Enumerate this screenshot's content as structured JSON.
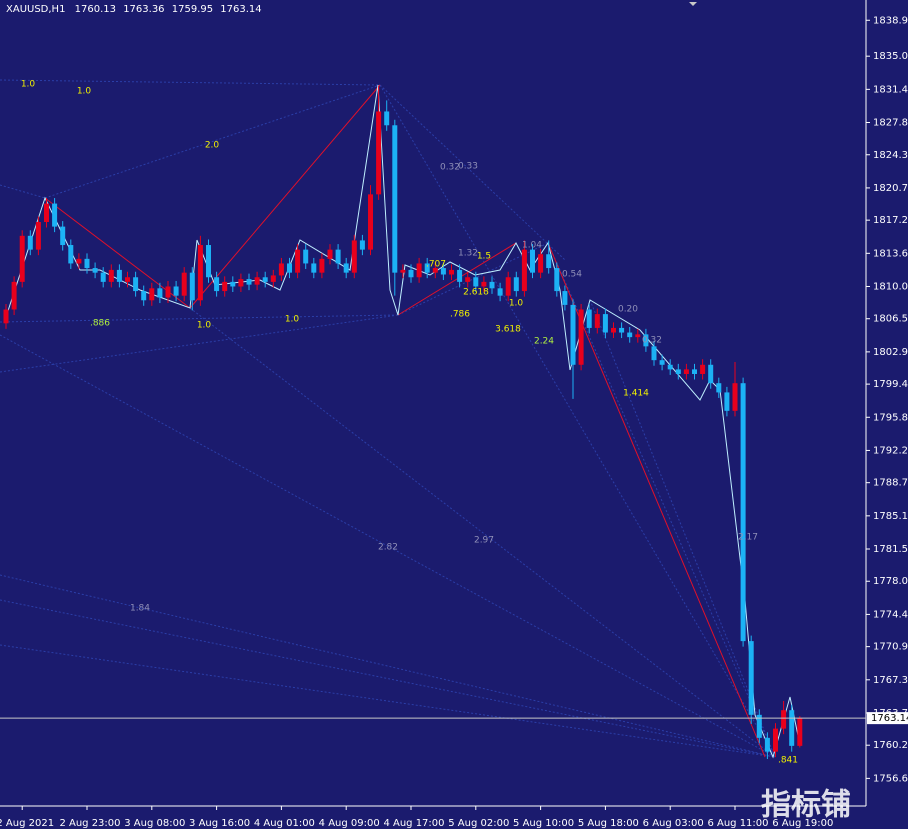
{
  "chart_data": {
    "type": "candlestick",
    "symbol": "XAUUSD,H1",
    "watermark": "指标铺",
    "up_color": "#e8001c",
    "down_color": "#1cb2f5",
    "background": "#1b1b6e",
    "categories": [
      null,
      null,
      "2 Aug 2021",
      null,
      null,
      null,
      null,
      null,
      null,
      null,
      "2 Aug 23:00",
      null,
      null,
      null,
      null,
      null,
      null,
      null,
      "3 Aug 08:00",
      null,
      null,
      null,
      null,
      null,
      null,
      null,
      "3 Aug 16:00",
      null,
      null,
      null,
      null,
      null,
      null,
      null,
      "4 Aug 01:00",
      null,
      null,
      null,
      null,
      null,
      null,
      null,
      "4 Aug 09:00",
      null,
      null,
      null,
      null,
      null,
      null,
      null,
      "4 Aug 17:00",
      null,
      null,
      null,
      null,
      null,
      null,
      null,
      "5 Aug 02:00",
      null,
      null,
      null,
      null,
      null,
      null,
      null,
      "5 Aug 10:00",
      null,
      null,
      null,
      null,
      null,
      null,
      null,
      "5 Aug 18:00",
      null,
      null,
      null,
      null,
      null,
      null,
      null,
      "6 Aug 03:00",
      null,
      null,
      null,
      null,
      null,
      null,
      null,
      "6 Aug 11:00",
      null,
      null,
      null,
      null,
      null,
      null,
      null,
      "6 Aug 19:00"
    ],
    "open": [
      1806.0,
      1807.5,
      1810.5,
      1815.5,
      1814.0,
      1817.0,
      1819.0,
      1816.5,
      1814.5,
      1812.5,
      1813.0,
      1812.0,
      1811.5,
      1810.5,
      1811.8,
      1810.5,
      1811.0,
      1809.5,
      1808.5,
      1809.8,
      1808.8,
      1810.0,
      1809.0,
      1811.5,
      1808.5,
      1814.5,
      1811.0,
      1809.5,
      1810.5,
      1810.0,
      1810.8,
      1810.2,
      1811.0,
      1810.5,
      1811.2,
      1812.5,
      1811.5,
      1814.0,
      1812.5,
      1811.5,
      1813.0,
      1814.0,
      1812.5,
      1811.5,
      1815.0,
      1814.0,
      1820.0,
      1829.0,
      1827.5,
      1811.5,
      1811.8,
      1811.0,
      1812.5,
      1811.5,
      1812.0,
      1811.3,
      1811.8,
      1810.5,
      1811.0,
      1810.0,
      1810.5,
      1809.8,
      1809.0,
      1811.0,
      1809.5,
      1814.0,
      1811.5,
      1813.5,
      1812.0,
      1809.5,
      1808.0,
      1801.5,
      1807.5,
      1805.5,
      1807.0,
      1805.0,
      1805.5,
      1805.0,
      1804.5,
      1804.8,
      1803.5,
      1802.0,
      1801.5,
      1801.0,
      1800.5,
      1801.0,
      1800.5,
      1801.5,
      1799.5,
      1798.5,
      1796.5,
      1799.5,
      1771.5,
      1763.5,
      1761.0,
      1759.5,
      1762.0,
      1764.0,
      1760.13
    ],
    "high": [
      1808.1,
      1811.1,
      1816.1,
      1816.1,
      1817.6,
      1819.6,
      1819.6,
      1817.1,
      1815.1,
      1813.6,
      1813.6,
      1812.6,
      1812.1,
      1812.4,
      1812.4,
      1811.6,
      1811.6,
      1810.1,
      1810.4,
      1810.4,
      1810.6,
      1810.6,
      1812.1,
      1812.1,
      1815.5,
      1815.1,
      1811.6,
      1811.1,
      1811.1,
      1811.4,
      1811.4,
      1811.6,
      1811.6,
      1811.8,
      1813.1,
      1813.1,
      1814.6,
      1814.6,
      1813.1,
      1813.6,
      1814.6,
      1814.6,
      1813.1,
      1815.6,
      1815.6,
      1821.0,
      1831.8,
      1830.2,
      1828.1,
      1812.4,
      1812.4,
      1813.1,
      1813.1,
      1812.6,
      1812.6,
      1812.4,
      1812.4,
      1811.6,
      1811.6,
      1811.1,
      1811.1,
      1810.4,
      1811.6,
      1811.6,
      1815.0,
      1814.6,
      1814.1,
      1815.0,
      1812.6,
      1810.1,
      1808.6,
      1808.1,
      1808.1,
      1807.6,
      1807.6,
      1806.1,
      1806.1,
      1805.6,
      1805.4,
      1805.4,
      1804.1,
      1802.6,
      1802.1,
      1801.6,
      1801.6,
      1801.6,
      1802.1,
      1802.1,
      1800.1,
      1799.1,
      1801.8,
      1800.1,
      1772.1,
      1764.1,
      1761.6,
      1762.6,
      1765.0,
      1764.6,
      1763.36
    ],
    "low": [
      1805.4,
      1806.9,
      1809.9,
      1813.4,
      1813.4,
      1816.4,
      1815.9,
      1813.9,
      1811.9,
      1811.9,
      1811.4,
      1810.9,
      1809.9,
      1809.9,
      1809.9,
      1809.9,
      1808.9,
      1807.9,
      1807.9,
      1808.2,
      1808.2,
      1808.4,
      1808.4,
      1807.4,
      1807.9,
      1810.4,
      1808.9,
      1808.9,
      1809.4,
      1809.4,
      1809.6,
      1809.6,
      1809.9,
      1809.9,
      1810.6,
      1810.9,
      1810.9,
      1811.9,
      1810.9,
      1810.9,
      1812.4,
      1811.9,
      1810.9,
      1810.9,
      1813.4,
      1813.4,
      1819.4,
      1826.9,
      1809.0,
      1810.9,
      1810.4,
      1810.4,
      1810.9,
      1810.9,
      1810.7,
      1810.7,
      1809.9,
      1809.9,
      1809.4,
      1809.4,
      1809.2,
      1808.4,
      1808.4,
      1808.9,
      1808.9,
      1810.9,
      1810.9,
      1811.4,
      1808.9,
      1807.4,
      1797.8,
      1800.9,
      1804.9,
      1804.9,
      1804.4,
      1804.4,
      1804.4,
      1803.9,
      1803.9,
      1802.9,
      1801.4,
      1800.9,
      1800.4,
      1799.9,
      1799.9,
      1799.9,
      1799.9,
      1798.9,
      1797.9,
      1795.9,
      1795.9,
      1770.9,
      1762.5,
      1760.4,
      1758.7,
      1758.9,
      1761.4,
      1759.5,
      1759.95
    ],
    "close": [
      1807.5,
      1810.5,
      1815.5,
      1814.0,
      1817.0,
      1819.0,
      1816.5,
      1814.5,
      1812.5,
      1813.0,
      1812.0,
      1811.5,
      1810.5,
      1811.8,
      1810.5,
      1811.0,
      1809.5,
      1808.5,
      1809.8,
      1808.8,
      1810.0,
      1809.0,
      1811.5,
      1808.5,
      1814.5,
      1811.0,
      1809.5,
      1810.5,
      1810.0,
      1810.8,
      1810.2,
      1811.0,
      1810.5,
      1811.2,
      1812.5,
      1811.5,
      1814.0,
      1812.5,
      1811.5,
      1813.0,
      1814.0,
      1812.5,
      1811.5,
      1815.0,
      1814.0,
      1820.0,
      1829.0,
      1827.5,
      1811.5,
      1811.8,
      1811.0,
      1812.5,
      1811.5,
      1812.0,
      1811.3,
      1811.8,
      1810.5,
      1811.0,
      1810.0,
      1810.5,
      1809.8,
      1809.0,
      1811.0,
      1809.5,
      1814.0,
      1811.5,
      1813.5,
      1812.0,
      1809.5,
      1808.0,
      1801.5,
      1807.5,
      1805.5,
      1807.0,
      1805.0,
      1805.5,
      1805.0,
      1804.5,
      1804.8,
      1803.5,
      1802.0,
      1801.5,
      1801.0,
      1800.5,
      1801.0,
      1800.5,
      1801.5,
      1799.5,
      1798.5,
      1796.5,
      1799.5,
      1771.5,
      1763.5,
      1761.0,
      1759.5,
      1762.0,
      1764.0,
      1760.13,
      1763.14
    ],
    "ylim": [
      1753.6,
      1841.1
    ],
    "yticks": [
      {
        "value": 1838.9,
        "label": "1838.90"
      },
      {
        "value": 1835,
        "label": "1835.00"
      },
      {
        "value": 1831.4,
        "label": "1831.40"
      },
      {
        "value": 1827.8,
        "label": "1827.80"
      },
      {
        "value": 1824.3,
        "label": "1824.30"
      },
      {
        "value": 1820.7,
        "label": "1820.70"
      },
      {
        "value": 1817.2,
        "label": "1817.20"
      },
      {
        "value": 1813.6,
        "label": "1813.60"
      },
      {
        "value": 1810,
        "label": "1810.00"
      },
      {
        "value": 1806.5,
        "label": "1806.50"
      },
      {
        "value": 1802.9,
        "label": "1802.90"
      },
      {
        "value": 1799.4,
        "label": "1799.40"
      },
      {
        "value": 1795.8,
        "label": "1795.80"
      },
      {
        "value": 1792.2,
        "label": "1792.20"
      },
      {
        "value": 1788.7,
        "label": "1788.70"
      },
      {
        "value": 1785.1,
        "label": "1785.10"
      },
      {
        "value": 1781.5,
        "label": "1781.50"
      },
      {
        "value": 1778,
        "label": "1778.00"
      },
      {
        "value": 1774.4,
        "label": "1774.40"
      },
      {
        "value": 1770.9,
        "label": "1770.90"
      },
      {
        "value": 1767.3,
        "label": "1767.30"
      },
      {
        "value": 1763.7,
        "label": "1763.70"
      },
      {
        "value": 1760.2,
        "label": "1760.20"
      },
      {
        "value": 1756.6,
        "label": "1756.60"
      }
    ],
    "annotations": [
      "1.0",
      "1.0",
      "2.0",
      "0.32",
      "0.33",
      "1.32",
      "1.04",
      "0.54",
      ".707",
      "1.5",
      "2.618",
      "1.0",
      ".886",
      "1.0",
      "1.0",
      ".786",
      "3.618",
      "2.24",
      "0.20",
      "0.32",
      "1.414",
      "2.82",
      "2.97",
      "1.84",
      "2.17",
      ".841"
    ]
  }
}
